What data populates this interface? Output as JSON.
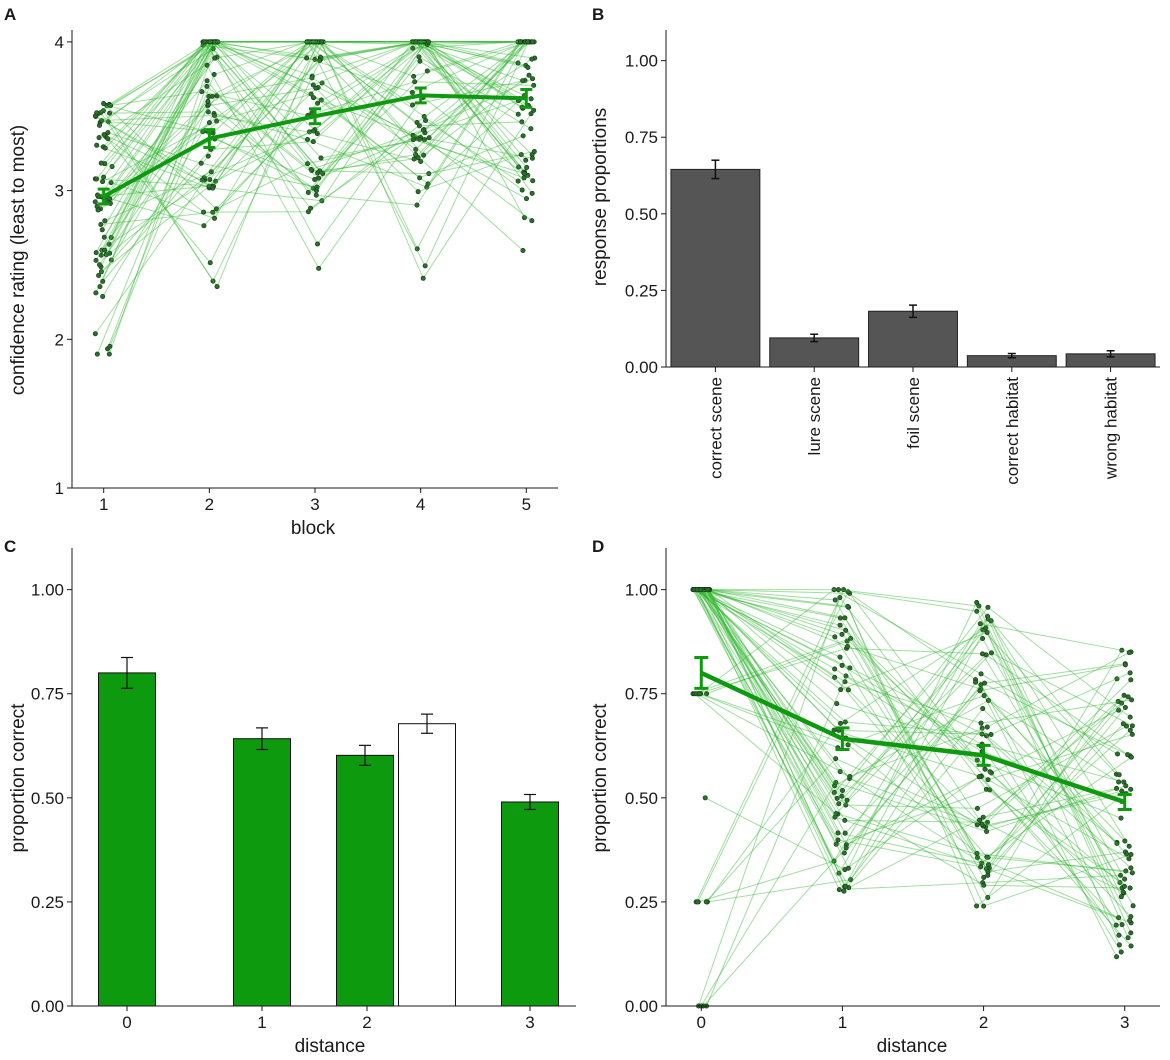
{
  "colors": {
    "green": "#0e9a0e",
    "light_green": "#2fb52f",
    "gray_bar": "#555555",
    "point_fill": "#2f6b2f",
    "axis": "#1a1a1a",
    "white_bar": "#ffffff"
  },
  "chart_data": [
    {
      "panel": "A",
      "type": "line",
      "xlabel": "block",
      "ylabel": "confidence rating (least to most)",
      "x": [
        1,
        2,
        3,
        4,
        5
      ],
      "x_ticks": [
        "1",
        "2",
        "3",
        "4",
        "5"
      ],
      "y_ticks": [
        "1",
        "2",
        "3",
        "4"
      ],
      "xlim": [
        0.7,
        5.3
      ],
      "ylim": [
        1,
        4.08
      ],
      "mean": [
        2.96,
        3.35,
        3.5,
        3.64,
        3.62
      ],
      "error": [
        0.05,
        0.06,
        0.05,
        0.05,
        0.06
      ],
      "individual_lines": "many faint green per-participant lines with points"
    },
    {
      "panel": "B",
      "type": "bar",
      "xlabel": "",
      "ylabel": "response proportions",
      "categories": [
        "correct scene",
        "lure scene",
        "foil scene",
        "correct habitat",
        "wrong habitat"
      ],
      "values": [
        0.645,
        0.095,
        0.182,
        0.037,
        0.043
      ],
      "error": [
        0.03,
        0.012,
        0.02,
        0.007,
        0.01
      ],
      "y_ticks": [
        "0.00",
        "0.25",
        "0.50",
        "0.75",
        "1.00"
      ],
      "ylim": [
        0,
        1.1
      ]
    },
    {
      "panel": "C",
      "type": "bar",
      "xlabel": "distance",
      "ylabel": "proportion correct",
      "x_ticks": [
        "0",
        "1",
        "2",
        "3"
      ],
      "y_ticks": [
        "0.00",
        "0.25",
        "0.50",
        "0.75",
        "1.00"
      ],
      "ylim": [
        0,
        1.1
      ],
      "series": [
        {
          "name": "green",
          "x": [
            0,
            1,
            2,
            3
          ],
          "values": [
            0.8,
            0.642,
            0.602,
            0.49
          ],
          "error": [
            0.037,
            0.026,
            0.024,
            0.018
          ]
        },
        {
          "name": "white",
          "x": [
            2
          ],
          "values": [
            0.678
          ],
          "error": [
            0.023
          ]
        }
      ]
    },
    {
      "panel": "D",
      "type": "line",
      "xlabel": "distance",
      "ylabel": "proportion correct",
      "x": [
        0,
        1,
        2,
        3
      ],
      "x_ticks": [
        "0",
        "1",
        "2",
        "3"
      ],
      "y_ticks": [
        "0.00",
        "0.25",
        "0.50",
        "0.75",
        "1.00"
      ],
      "ylim": [
        0,
        1.1
      ],
      "mean": [
        0.8,
        0.642,
        0.602,
        0.49
      ],
      "error": [
        0.037,
        0.026,
        0.024,
        0.018
      ],
      "individual_lines": "many faint green per-participant lines with points"
    }
  ]
}
